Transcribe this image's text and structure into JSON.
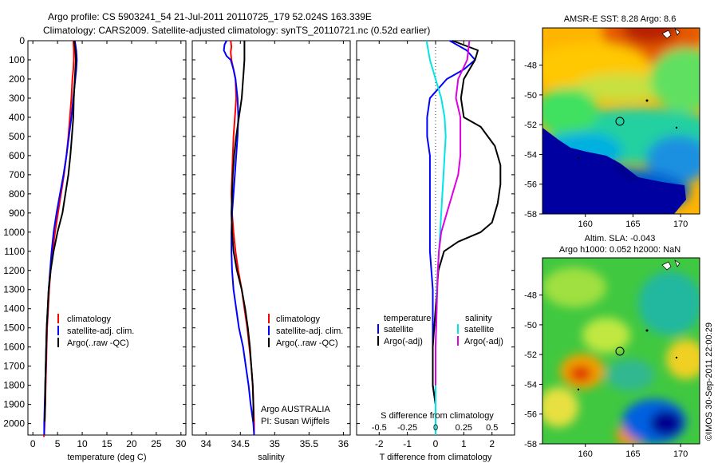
{
  "header": {
    "line1": "Argo profile: CS 5903241_54 21-Jul-2011 20110725_179 52.024S 163.339E",
    "line2": "Climatology: CARS2009. Satellite-adjusted climatology: synTS_20110721.nc (0.52d earlier)"
  },
  "side_label": "©IMOS 30-Sep-2011 22:00:29",
  "colors": {
    "climatology": "#ff0000",
    "satellite": "#0000ff",
    "argo": "#000000",
    "sat_salinity": "#00e5e5",
    "argo_salinity": "#e000e0"
  },
  "chart_data": [
    {
      "id": "temperature",
      "type": "line",
      "xlabel": "temperature (deg C)",
      "xlim": [
        -1,
        31
      ],
      "xticks": [
        0,
        5,
        10,
        15,
        20,
        25,
        30
      ],
      "xticklabels": [
        "0",
        "5",
        "10",
        "15",
        "20",
        "25",
        "30"
      ],
      "ylim": [
        2060,
        0
      ],
      "yticks": [
        0,
        100,
        200,
        300,
        400,
        500,
        600,
        700,
        800,
        900,
        1000,
        1100,
        1200,
        1300,
        1400,
        1500,
        1600,
        1700,
        1800,
        1900,
        2000
      ],
      "legend": [
        "climatology",
        "satellite-adj. clim.",
        "Argo(..raw -QC)"
      ],
      "series": [
        {
          "name": "climatology",
          "color": "#ff0000",
          "x": [
            8.2,
            8.3,
            8.3,
            8.2,
            8.0,
            7.8,
            7.5,
            7.2,
            6.8,
            6.3,
            5.7,
            5.1,
            4.5,
            4.0,
            3.6,
            3.3,
            3.1,
            2.9,
            2.8,
            2.7,
            2.6,
            2.5,
            2.4,
            2.3,
            2.3,
            2.2
          ],
          "y": [
            0,
            50,
            100,
            150,
            200,
            300,
            400,
            500,
            600,
            700,
            800,
            900,
            1000,
            1100,
            1200,
            1300,
            1400,
            1500,
            1600,
            1700,
            1800,
            1900,
            2000,
            2050,
            2060,
            2070
          ]
        },
        {
          "name": "satellite-adj. clim.",
          "color": "#0000ff",
          "x": [
            8.5,
            8.8,
            8.9,
            8.8,
            8.6,
            8.2,
            7.8,
            7.3,
            6.8,
            6.2,
            5.5,
            4.8,
            4.2,
            3.8,
            3.5,
            3.2,
            3.0,
            2.8,
            2.7,
            2.6,
            2.5,
            2.4,
            2.3,
            2.3
          ],
          "y": [
            0,
            50,
            100,
            150,
            200,
            300,
            400,
            500,
            600,
            700,
            800,
            900,
            1000,
            1100,
            1200,
            1300,
            1400,
            1500,
            1600,
            1700,
            1800,
            1900,
            2000,
            2060
          ]
        },
        {
          "name": "Argo(..raw -QC)",
          "color": "#000000",
          "x": [
            8.4,
            8.6,
            8.7,
            8.6,
            8.5,
            8.3,
            8.2,
            7.9,
            7.6,
            7.2,
            6.6,
            6.0,
            5.0,
            4.2,
            3.6,
            3.2,
            3.0,
            2.8,
            2.7,
            2.6,
            2.5,
            2.5,
            2.4
          ],
          "y": [
            0,
            50,
            100,
            150,
            200,
            300,
            400,
            500,
            600,
            700,
            800,
            900,
            1000,
            1100,
            1200,
            1300,
            1400,
            1500,
            1600,
            1700,
            1800,
            1900,
            1990
          ]
        }
      ]
    },
    {
      "id": "salinity",
      "type": "line",
      "xlabel": "salinity",
      "xlim": [
        33.8,
        36.1
      ],
      "xticks": [
        34,
        34.5,
        35,
        35.5,
        36
      ],
      "xticklabels": [
        "34",
        "34.5",
        "35",
        "35.5",
        "36"
      ],
      "ylim": [
        2060,
        0
      ],
      "legend": [
        "climatology",
        "satellite-adj. clim.",
        "Argo(..raw -QC)"
      ],
      "annotation": [
        "Argo AUSTRALIA",
        "PI: Susan Wijffels"
      ],
      "series": [
        {
          "name": "climatology",
          "color": "#ff0000",
          "x": [
            34.36,
            34.37,
            34.36,
            34.37,
            34.4,
            34.43,
            34.44,
            34.42,
            34.4,
            34.39,
            34.38,
            34.37,
            34.38,
            34.4,
            34.43,
            34.47,
            34.52,
            34.56,
            34.6,
            34.63,
            34.66,
            34.68,
            34.69,
            34.7,
            34.7
          ],
          "y": [
            0,
            30,
            60,
            100,
            150,
            200,
            300,
            400,
            500,
            600,
            700,
            800,
            900,
            1000,
            1100,
            1200,
            1300,
            1400,
            1500,
            1600,
            1700,
            1800,
            1900,
            2000,
            2060
          ]
        },
        {
          "name": "satellite-adj. clim.",
          "color": "#0000ff",
          "x": [
            34.3,
            34.27,
            34.26,
            34.3,
            34.36,
            34.4,
            34.43,
            34.46,
            34.47,
            34.46,
            34.44,
            34.42,
            34.4,
            34.38,
            34.37,
            34.37,
            34.38,
            34.4,
            34.44,
            34.48,
            34.54,
            34.58,
            34.62,
            34.65,
            34.67,
            34.69,
            34.7
          ],
          "y": [
            0,
            20,
            50,
            80,
            100,
            150,
            200,
            300,
            400,
            500,
            600,
            700,
            800,
            900,
            1000,
            1100,
            1200,
            1300,
            1400,
            1500,
            1600,
            1700,
            1800,
            1900,
            1950,
            2000,
            2060
          ]
        },
        {
          "name": "Argo(..raw -QC)",
          "color": "#000000",
          "x": [
            34.56,
            34.56,
            34.56,
            34.55,
            34.52,
            34.48,
            34.44,
            34.41,
            34.39,
            34.38,
            34.37,
            34.38,
            34.4,
            34.45,
            34.52,
            34.57,
            34.61,
            34.64,
            34.66,
            34.68,
            34.69,
            34.69
          ],
          "y": [
            0,
            50,
            100,
            150,
            300,
            400,
            500,
            600,
            700,
            800,
            900,
            1000,
            1100,
            1200,
            1300,
            1400,
            1500,
            1600,
            1700,
            1800,
            1900,
            1990
          ]
        }
      ]
    },
    {
      "id": "difference",
      "type": "line",
      "xlabel": "T difference from climatology",
      "top_axis_label": "S difference from climatology",
      "xlim": [
        -2.8,
        2.8
      ],
      "xticks": [
        -2,
        -1,
        0,
        1,
        2
      ],
      "xticklabels": [
        "-2",
        "-1",
        "0",
        "1",
        "2"
      ],
      "top_xticks": [
        -0.5,
        -0.25,
        0,
        0.25,
        0.5
      ],
      "top_xticklabels": [
        "-0.5",
        "-0.25",
        "0",
        "0.25",
        "0.5"
      ],
      "ylim": [
        2060,
        0
      ],
      "legend_columns": [
        {
          "title": "temperature",
          "items": [
            "satellite",
            "Argo(-adj)"
          ]
        },
        {
          "title": "salinity",
          "items": [
            "satellite",
            "Argo(-adj)"
          ]
        }
      ],
      "series": [
        {
          "name": "temperature satellite",
          "color": "#0000ff",
          "x": [
            0.5,
            1.1,
            1.4,
            1.0,
            0.4,
            -0.2,
            -0.3,
            -0.3,
            -0.2,
            -0.2,
            -0.2,
            -0.2,
            -0.2,
            -0.2,
            -0.1,
            -0.1,
            -0.1,
            -0.1,
            -0.1,
            0.0,
            0.0
          ],
          "y": [
            0,
            50,
            100,
            150,
            200,
            300,
            400,
            500,
            600,
            700,
            800,
            900,
            1000,
            1100,
            1300,
            1500,
            1600,
            1700,
            1800,
            1900,
            2000
          ]
        },
        {
          "name": "temperature Argo(-adj)",
          "color": "#000000",
          "x": [
            0.6,
            1.5,
            1.4,
            1.0,
            0.9,
            1.0,
            1.6,
            2.1,
            2.3,
            2.3,
            2.2,
            2.0,
            1.6,
            0.8,
            0.3,
            0.1,
            0.0,
            -0.1,
            -0.1,
            0.0,
            0.0
          ],
          "y": [
            0,
            50,
            100,
            200,
            300,
            400,
            450,
            550,
            650,
            750,
            850,
            950,
            1000,
            1050,
            1100,
            1200,
            1400,
            1600,
            1800,
            1900,
            1990
          ]
        },
        {
          "name": "salinity satellite",
          "color": "#00e5e5",
          "x": [
            -0.08,
            -0.05,
            0.0,
            0.05,
            0.08,
            0.09,
            0.08,
            0.07,
            0.06,
            0.05,
            0.04,
            0.03,
            0.02,
            0.01,
            0.01,
            0.0,
            0.0,
            0.0
          ],
          "y": [
            0,
            100,
            200,
            300,
            400,
            500,
            600,
            700,
            800,
            900,
            1000,
            1100,
            1200,
            1300,
            1400,
            1600,
            1800,
            2060
          ]
        },
        {
          "name": "salinity Argo(-adj)",
          "color": "#e000e0",
          "x": [
            0.3,
            0.28,
            0.2,
            0.18,
            0.22,
            0.22,
            0.22,
            0.2,
            0.15,
            0.1,
            0.05,
            0.03,
            0.02,
            0.01,
            0.0,
            0.0
          ],
          "y": [
            0,
            100,
            200,
            300,
            400,
            500,
            600,
            700,
            800,
            900,
            1000,
            1100,
            1200,
            1400,
            1600,
            1800
          ]
        }
      ]
    },
    {
      "id": "sst_map",
      "type": "heatmap",
      "title": "AMSR-E SST: 8.28 Argo: 8.6",
      "xticks": [
        160,
        165,
        170
      ],
      "xticklabels": [
        "160",
        "165",
        "170"
      ],
      "yticks": [
        -48,
        -50,
        -52,
        -54,
        -56,
        -58
      ],
      "yticklabels": [
        "-48",
        "-50",
        "-52",
        "-54",
        "-56",
        "-58"
      ],
      "xlim": [
        155.5,
        172
      ],
      "ylim": [
        -58,
        -45.5
      ],
      "marker": {
        "lon": 163.339,
        "lat": -52.024
      }
    },
    {
      "id": "sla_map",
      "type": "heatmap",
      "title_lines": [
        "Altim. SLA: -0.043",
        "Argo h1000: 0.052 h2000: NaN"
      ],
      "xticks": [
        160,
        165,
        170
      ],
      "xticklabels": [
        "160",
        "165",
        "170"
      ],
      "yticks": [
        -48,
        -50,
        -52,
        -54,
        -56,
        -58
      ],
      "yticklabels": [
        "-48",
        "-50",
        "-52",
        "-54",
        "-56",
        "-58"
      ],
      "xlim": [
        155.5,
        172
      ],
      "ylim": [
        -58,
        -45.5
      ],
      "marker": {
        "lon": 163.339,
        "lat": -52.024
      }
    }
  ]
}
